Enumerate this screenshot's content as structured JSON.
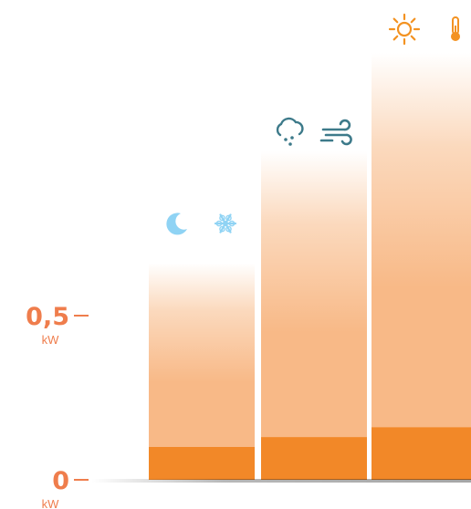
{
  "colors": {
    "accent": "#f08a2c",
    "accent_text": "#ef7d4c",
    "bar_top": "#ffffff",
    "bar_light": "#fbd9bd",
    "bar_mid": "#f8b987",
    "bar_solid": "#f28828",
    "cold_icon": "#8fd3f4",
    "rain_icon": "#3d7a8a",
    "sun_icon": "#f39221"
  },
  "chart_data": {
    "type": "bar",
    "categories": [
      "night-cold",
      "rain-wind",
      "sun-heat"
    ],
    "series": [
      {
        "values": [
          0.66,
          1.0,
          1.3
        ]
      },
      {
        "values": [
          0.1,
          0.13,
          0.16
        ]
      }
    ],
    "ylim": [
      0,
      1.35
    ],
    "yticks": [
      {
        "value": 0.5,
        "label": "0,5",
        "unit": "kW"
      },
      {
        "value": 0,
        "label": "0",
        "unit": "kW"
      }
    ],
    "icons": [
      [
        "moon-icon",
        "snowflake-icon"
      ],
      [
        "rain-cloud-icon",
        "wind-icon"
      ],
      [
        "sun-icon",
        "thermometer-icon"
      ]
    ]
  }
}
